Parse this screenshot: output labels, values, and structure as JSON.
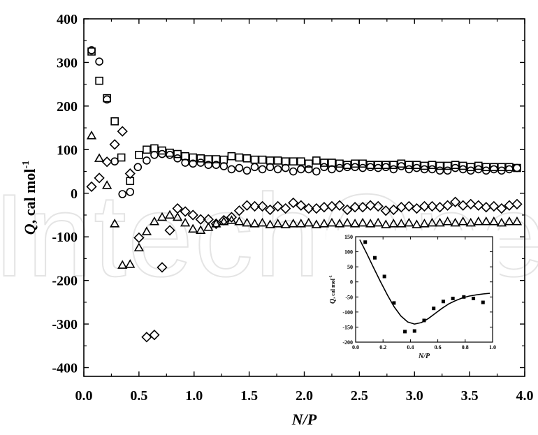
{
  "watermark": "IntechOpen",
  "chart_data": [
    {
      "type": "scatter",
      "xlabel": "N/P",
      "ylabel_parts": [
        "Q",
        ",  cal mol",
        "-1"
      ],
      "xlim": [
        0,
        4.0
      ],
      "ylim": [
        -420,
        400
      ],
      "xticks": [
        0.0,
        0.5,
        1.0,
        1.5,
        2.0,
        2.5,
        3.0,
        3.5,
        4.0
      ],
      "xtick_labels": [
        "0.0",
        "0.5",
        "1.0",
        "1.5",
        "2.0",
        "2.5",
        "3.0",
        "3.5",
        "4.0"
      ],
      "yticks": [
        -400,
        -300,
        -200,
        -100,
        0,
        100,
        200,
        300,
        400
      ],
      "ytick_labels": [
        "-400",
        "-300",
        "-200",
        "-100",
        "0",
        "100",
        "200",
        "300",
        "400"
      ],
      "grid": false,
      "series": [
        {
          "marker": "square",
          "x": [
            0.07,
            0.14,
            0.21,
            0.28,
            0.34,
            0.42,
            0.5,
            0.57,
            0.64,
            0.71,
            0.78,
            0.85,
            0.92,
            0.99,
            1.06,
            1.13,
            1.2,
            1.27,
            1.34,
            1.41,
            1.48,
            1.55,
            1.62,
            1.69,
            1.76,
            1.83,
            1.9,
            1.97,
            2.04,
            2.11,
            2.18,
            2.25,
            2.32,
            2.39,
            2.46,
            2.53,
            2.6,
            2.67,
            2.74,
            2.81,
            2.88,
            2.95,
            3.02,
            3.09,
            3.16,
            3.23,
            3.3,
            3.37,
            3.44,
            3.51,
            3.58,
            3.65,
            3.72,
            3.79,
            3.86,
            3.93
          ],
          "y": [
            325,
            258,
            218,
            165,
            82,
            28,
            88,
            100,
            103,
            98,
            93,
            90,
            85,
            82,
            80,
            78,
            78,
            77,
            85,
            82,
            80,
            77,
            77,
            75,
            75,
            73,
            73,
            73,
            68,
            75,
            70,
            70,
            68,
            65,
            68,
            68,
            65,
            65,
            65,
            65,
            68,
            65,
            65,
            63,
            65,
            63,
            63,
            65,
            63,
            60,
            63,
            60,
            60,
            60,
            60,
            58
          ]
        },
        {
          "marker": "circle",
          "x": [
            0.07,
            0.14,
            0.21,
            0.28,
            0.35,
            0.42,
            0.49,
            0.57,
            0.64,
            0.71,
            0.78,
            0.85,
            0.92,
            0.99,
            1.06,
            1.13,
            1.2,
            1.27,
            1.34,
            1.41,
            1.48,
            1.55,
            1.62,
            1.69,
            1.76,
            1.83,
            1.9,
            1.97,
            2.04,
            2.11,
            2.18,
            2.25,
            2.32,
            2.39,
            2.46,
            2.53,
            2.6,
            2.67,
            2.74,
            2.81,
            2.88,
            2.95,
            3.02,
            3.09,
            3.16,
            3.23,
            3.3,
            3.37,
            3.44,
            3.51,
            3.58,
            3.65,
            3.72,
            3.79,
            3.86,
            3.93
          ],
          "y": [
            328,
            302,
            215,
            73,
            -2,
            3,
            60,
            75,
            88,
            90,
            88,
            80,
            70,
            68,
            70,
            65,
            65,
            62,
            55,
            58,
            52,
            60,
            55,
            60,
            55,
            58,
            50,
            55,
            55,
            50,
            60,
            55,
            58,
            60,
            60,
            58,
            60,
            58,
            60,
            55,
            62,
            55,
            58,
            55,
            55,
            52,
            52,
            58,
            55,
            52,
            55,
            52,
            55,
            52,
            55,
            58
          ]
        },
        {
          "marker": "triangle",
          "x": [
            0.07,
            0.14,
            0.21,
            0.28,
            0.35,
            0.42,
            0.5,
            0.57,
            0.64,
            0.71,
            0.78,
            0.85,
            0.92,
            0.99,
            1.06,
            1.13,
            1.2,
            1.27,
            1.34,
            1.41,
            1.48,
            1.55,
            1.62,
            1.69,
            1.76,
            1.83,
            1.9,
            1.97,
            2.04,
            2.11,
            2.18,
            2.25,
            2.32,
            2.39,
            2.46,
            2.53,
            2.6,
            2.67,
            2.74,
            2.81,
            2.88,
            2.95,
            3.02,
            3.09,
            3.16,
            3.23,
            3.3,
            3.37,
            3.44,
            3.51,
            3.58,
            3.65,
            3.72,
            3.79,
            3.86,
            3.93
          ],
          "y": [
            132,
            80,
            18,
            -70,
            -165,
            -163,
            -125,
            -88,
            -65,
            -55,
            -50,
            -55,
            -68,
            -82,
            -85,
            -78,
            -70,
            -65,
            -62,
            -65,
            -68,
            -70,
            -68,
            -72,
            -70,
            -72,
            -70,
            -70,
            -68,
            -72,
            -70,
            -68,
            -70,
            -68,
            -70,
            -68,
            -70,
            -68,
            -72,
            -70,
            -70,
            -68,
            -72,
            -70,
            -68,
            -68,
            -65,
            -68,
            -65,
            -68,
            -65,
            -65,
            -65,
            -68,
            -65,
            -65
          ]
        },
        {
          "marker": "diamond",
          "x": [
            0.07,
            0.14,
            0.21,
            0.28,
            0.35,
            0.42,
            0.5,
            0.57,
            0.64,
            0.71,
            0.78,
            0.85,
            0.92,
            0.99,
            1.06,
            1.13,
            1.2,
            1.27,
            1.34,
            1.41,
            1.48,
            1.55,
            1.62,
            1.69,
            1.76,
            1.83,
            1.9,
            1.97,
            2.04,
            2.11,
            2.18,
            2.25,
            2.32,
            2.39,
            2.46,
            2.53,
            2.6,
            2.67,
            2.74,
            2.81,
            2.88,
            2.95,
            3.02,
            3.09,
            3.16,
            3.23,
            3.3,
            3.37,
            3.44,
            3.51,
            3.58,
            3.65,
            3.72,
            3.79,
            3.86,
            3.93
          ],
          "y": [
            15,
            35,
            72,
            112,
            142,
            45,
            -102,
            -330,
            -325,
            -170,
            -85,
            -35,
            -42,
            -50,
            -60,
            -60,
            -70,
            -62,
            -55,
            -40,
            -28,
            -30,
            -30,
            -38,
            -30,
            -35,
            -22,
            -28,
            -35,
            -35,
            -32,
            -30,
            -28,
            -38,
            -32,
            -32,
            -28,
            -30,
            -40,
            -38,
            -32,
            -30,
            -35,
            -30,
            -30,
            -32,
            -28,
            -20,
            -28,
            -25,
            -28,
            -32,
            -30,
            -35,
            -28,
            -25
          ]
        }
      ]
    },
    {
      "type": "scatter",
      "role": "inset",
      "xlabel": "N/P",
      "ylabel_parts": [
        "Q",
        ",  cal mol",
        "-1"
      ],
      "xlim": [
        0,
        1.0
      ],
      "ylim": [
        -200,
        150
      ],
      "xticks": [
        0.0,
        0.2,
        0.4,
        0.6,
        0.8,
        1.0
      ],
      "xtick_labels": [
        "0.0",
        "0.2",
        "0.4",
        "0.6",
        "0.8",
        "1.0"
      ],
      "yticks": [
        -200,
        -150,
        -100,
        -50,
        0,
        50,
        100,
        150
      ],
      "ytick_labels": [
        "-200",
        "-150",
        "-100",
        "-50",
        "0",
        "50",
        "100",
        "150"
      ],
      "points": {
        "marker": "filled-square",
        "x": [
          0.07,
          0.14,
          0.21,
          0.28,
          0.36,
          0.43,
          0.5,
          0.57,
          0.64,
          0.71,
          0.79,
          0.86,
          0.93
        ],
        "y": [
          132,
          80,
          18,
          -70,
          -165,
          -163,
          -128,
          -88,
          -65,
          -55,
          -50,
          -55,
          -68
        ]
      },
      "fit_curve": {
        "x": [
          0.03,
          0.08,
          0.13,
          0.18,
          0.23,
          0.28,
          0.33,
          0.38,
          0.43,
          0.48,
          0.53,
          0.58,
          0.63,
          0.68,
          0.73,
          0.78,
          0.83,
          0.88,
          0.93,
          0.98
        ],
        "y": [
          140,
          95,
          48,
          2,
          -42,
          -82,
          -113,
          -133,
          -140,
          -135,
          -122,
          -105,
          -88,
          -73,
          -62,
          -53,
          -47,
          -43,
          -40,
          -38
        ]
      }
    }
  ]
}
